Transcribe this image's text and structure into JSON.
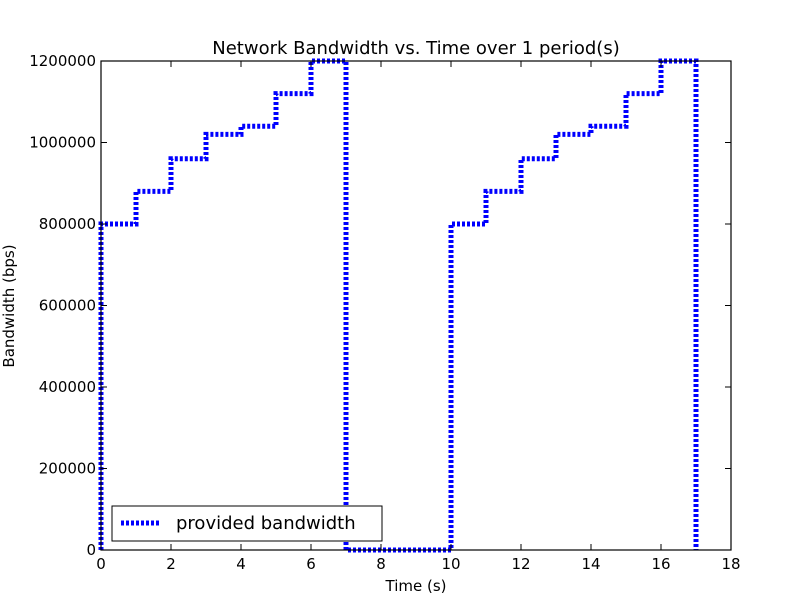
{
  "chart_data": {
    "type": "line",
    "title": "Network Bandwidth vs. Time over 1 period(s)",
    "xlabel": "Time (s)",
    "ylabel": "Bandwidth (bps)",
    "xlim": [
      0,
      18
    ],
    "ylim": [
      0,
      1200000
    ],
    "xticks": [
      "0",
      "2",
      "4",
      "6",
      "8",
      "10",
      "12",
      "14",
      "16",
      "18"
    ],
    "yticks": [
      "0",
      "200000",
      "400000",
      "600000",
      "800000",
      "1000000",
      "1200000"
    ],
    "grid": false,
    "legend_placement": "lower-left",
    "color": "#0000ff",
    "series": [
      {
        "name": "provided bandwidth",
        "style": "dotted",
        "points": [
          [
            0,
            0
          ],
          [
            0,
            800000
          ],
          [
            1,
            800000
          ],
          [
            1,
            880000
          ],
          [
            2,
            880000
          ],
          [
            2,
            960000
          ],
          [
            3,
            960000
          ],
          [
            3,
            1020000
          ],
          [
            4,
            1020000
          ],
          [
            4,
            1040000
          ],
          [
            5,
            1040000
          ],
          [
            5,
            1120000
          ],
          [
            6,
            1120000
          ],
          [
            6,
            1200000
          ],
          [
            7,
            1200000
          ],
          [
            7,
            0
          ],
          [
            10,
            0
          ],
          [
            10,
            800000
          ],
          [
            11,
            800000
          ],
          [
            11,
            880000
          ],
          [
            12,
            880000
          ],
          [
            12,
            960000
          ],
          [
            13,
            960000
          ],
          [
            13,
            1020000
          ],
          [
            14,
            1020000
          ],
          [
            14,
            1040000
          ],
          [
            15,
            1040000
          ],
          [
            15,
            1120000
          ],
          [
            16,
            1120000
          ],
          [
            16,
            1200000
          ],
          [
            17,
            1200000
          ],
          [
            17,
            0
          ]
        ]
      }
    ]
  }
}
